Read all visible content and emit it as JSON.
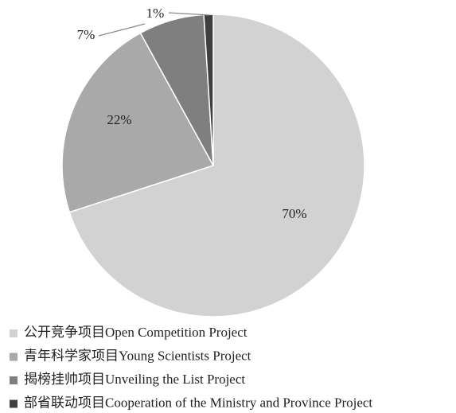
{
  "chart_data": {
    "type": "pie",
    "categories": [
      "公开竞争项目Open Competition Project",
      "青年科学家项目Young Scientists Project",
      "揭榜挂帅项目Unveiling the List Project",
      "部省联动项目Cooperation of the Ministry and Province Project"
    ],
    "values": [
      70,
      22,
      7,
      1
    ],
    "value_labels": [
      "70%",
      "22%",
      "7%",
      "1%"
    ],
    "colors": [
      "#d2d2d2",
      "#a9a9a9",
      "#7f7f7f",
      "#3f3f3f"
    ]
  }
}
